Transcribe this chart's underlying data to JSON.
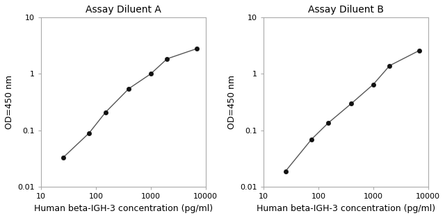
{
  "title_A": "Assay Diluent A",
  "title_B": "Assay Diluent B",
  "xlabel": "Human beta-IGH-3 concentration (pg/ml)",
  "ylabel": "OD=450 nm",
  "xlim": [
    15,
    9000
  ],
  "ylim": [
    0.01,
    10
  ],
  "plot_A_x": [
    25,
    75,
    150,
    400,
    1000,
    2000,
    7000
  ],
  "plot_A_y": [
    0.033,
    0.09,
    0.21,
    0.55,
    1.0,
    1.85,
    2.8
  ],
  "plot_B_x": [
    25,
    75,
    150,
    400,
    1000,
    2000,
    7000
  ],
  "plot_B_y": [
    0.019,
    0.07,
    0.135,
    0.3,
    0.65,
    1.4,
    2.6
  ],
  "line_color": "#555555",
  "marker_color": "#111111",
  "title_fontsize": 10,
  "label_fontsize": 9,
  "tick_fontsize": 8,
  "text_color": "#000000",
  "bg_color": "#ffffff",
  "spine_color": "#aaaaaa",
  "xticks": [
    10,
    100,
    1000,
    10000
  ],
  "yticks": [
    0.01,
    0.1,
    1,
    10
  ]
}
